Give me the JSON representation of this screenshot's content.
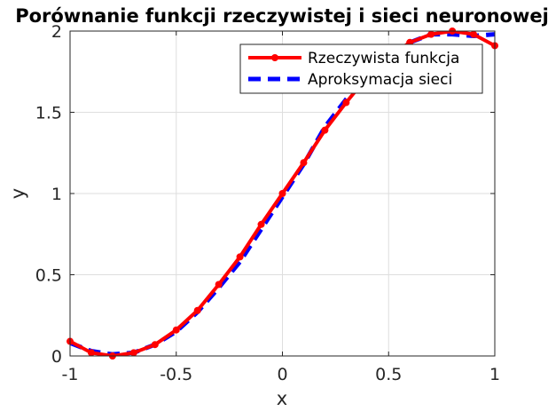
{
  "chart_data": {
    "type": "line",
    "title": "Porównanie funkcji rzeczywistej i sieci neuronowej",
    "xlabel": "x",
    "ylabel": "y",
    "xlim": [
      -1,
      1
    ],
    "ylim": [
      0,
      2
    ],
    "xticks": [
      -1,
      -0.5,
      0,
      0.5,
      1
    ],
    "xtick_labels": [
      "-1",
      "-0.5",
      "0",
      "0.5",
      "1"
    ],
    "yticks": [
      0,
      0.5,
      1,
      1.5,
      2
    ],
    "ytick_labels": [
      "0",
      "0.5",
      "1",
      "1.5",
      "2"
    ],
    "grid": true,
    "legend_position": "top-right",
    "series": [
      {
        "name": "Rzeczywista funkcja",
        "color": "#ff0000",
        "style": "solid-with-markers",
        "x": [
          -1,
          -0.9,
          -0.8,
          -0.7,
          -0.6,
          -0.5,
          -0.4,
          -0.3,
          -0.2,
          -0.1,
          0,
          0.1,
          0.2,
          0.3,
          0.4,
          0.5,
          0.6,
          0.7,
          0.8,
          0.9,
          1
        ],
        "y": [
          0.09,
          0.02,
          0.0,
          0.02,
          0.07,
          0.16,
          0.28,
          0.44,
          0.61,
          0.81,
          1.0,
          1.19,
          1.39,
          1.56,
          1.72,
          1.84,
          1.93,
          1.98,
          2.0,
          1.98,
          1.91
        ]
      },
      {
        "name": "Aproksymacja sieci",
        "color": "#0000ff",
        "style": "dashed",
        "x": [
          -1,
          -0.9,
          -0.8,
          -0.7,
          -0.6,
          -0.5,
          -0.4,
          -0.3,
          -0.2,
          -0.1,
          0,
          0.1,
          0.2,
          0.3,
          0.4,
          0.5,
          0.6,
          0.7,
          0.8,
          0.9,
          1
        ],
        "y": [
          0.08,
          0.03,
          0.01,
          0.02,
          0.07,
          0.15,
          0.27,
          0.42,
          0.58,
          0.78,
          0.98,
          1.18,
          1.41,
          1.58,
          1.73,
          1.85,
          1.93,
          1.98,
          1.98,
          1.97,
          1.98
        ]
      }
    ]
  }
}
